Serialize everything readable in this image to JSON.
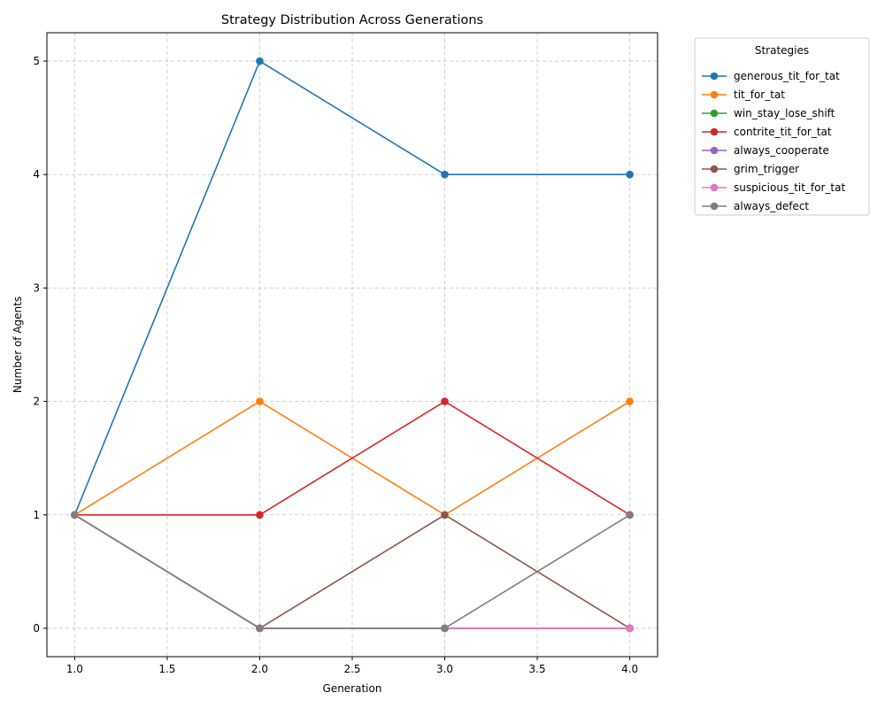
{
  "chart_data": {
    "type": "line",
    "title": "Strategy Distribution Across Generations",
    "xlabel": "Generation",
    "ylabel": "Number of Agents",
    "xlim": [
      0.85,
      4.15
    ],
    "ylim": [
      -0.25,
      5.25
    ],
    "xticks": [
      1.0,
      1.5,
      2.0,
      2.5,
      3.0,
      3.5,
      4.0
    ],
    "xtick_labels": [
      "1.0",
      "1.5",
      "2.0",
      "2.5",
      "3.0",
      "3.5",
      "4.0"
    ],
    "yticks": [
      0,
      1,
      2,
      3,
      4,
      5
    ],
    "ytick_labels": [
      "0",
      "1",
      "2",
      "3",
      "4",
      "5"
    ],
    "grid": true,
    "legend_title": "Strategies",
    "legend_position": "outside-top-right",
    "x": [
      1,
      2,
      3,
      4
    ],
    "series": [
      {
        "name": "generous_tit_for_tat",
        "color": "#1f77b4",
        "values": [
          1,
          5,
          4,
          4
        ]
      },
      {
        "name": "tit_for_tat",
        "color": "#ff7f0e",
        "values": [
          1,
          2,
          1,
          2
        ]
      },
      {
        "name": "win_stay_lose_shift",
        "color": "#2ca02c",
        "values": [
          1,
          0,
          0,
          0
        ]
      },
      {
        "name": "contrite_tit_for_tat",
        "color": "#d62728",
        "values": [
          1,
          1,
          2,
          1
        ]
      },
      {
        "name": "always_cooperate",
        "color": "#9467bd",
        "values": [
          1,
          0,
          0,
          0
        ]
      },
      {
        "name": "grim_trigger",
        "color": "#8c564b",
        "values": [
          1,
          0,
          1,
          0
        ]
      },
      {
        "name": "suspicious_tit_for_tat",
        "color": "#e377c2",
        "values": [
          1,
          0,
          0,
          0
        ]
      },
      {
        "name": "always_defect",
        "color": "#7f7f7f",
        "values": [
          1,
          0,
          0,
          1
        ]
      }
    ]
  }
}
